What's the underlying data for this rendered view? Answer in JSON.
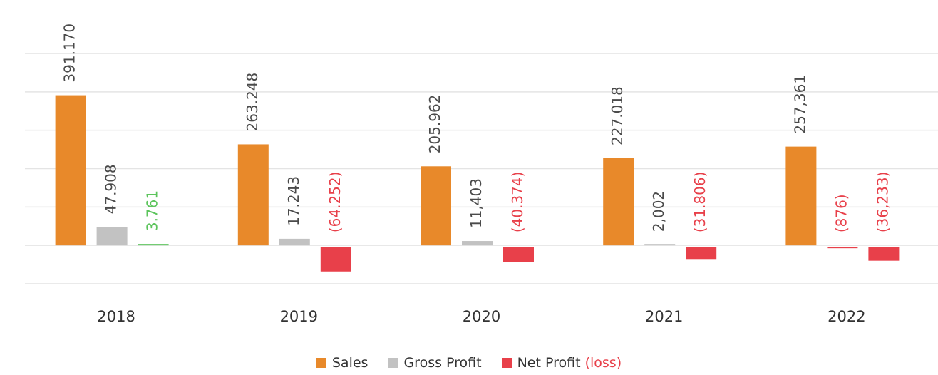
{
  "chart_data": {
    "type": "bar",
    "categories": [
      "2018",
      "2019",
      "2020",
      "2021",
      "2022"
    ],
    "series": [
      {
        "name": "Sales",
        "color": "#e8892a",
        "label_color": "#4a4a4a",
        "negative_label_color": "#e8404a",
        "values": [
          391170,
          263248,
          205962,
          227018,
          257361
        ],
        "value_labels": [
          "391.170",
          "263.248",
          "205.962",
          "227.018",
          "257,361"
        ]
      },
      {
        "name": "Gross Profit",
        "color": "#c2c2c2",
        "negative_color": "#e8404a",
        "label_color": "#4a4a4a",
        "negative_label_color": "#e8404a",
        "values": [
          47908,
          17243,
          11403,
          2002,
          -876
        ],
        "value_labels": [
          "47.908",
          "17.243",
          "11,403",
          "2,002",
          "(876)"
        ]
      },
      {
        "name": "Net Profit (loss)",
        "color": "#e8404a",
        "positive_color": "#5cc45c",
        "label_color": "#5cc45c",
        "negative_label_color": "#e8404a",
        "values": [
          3761,
          -64252,
          -40374,
          -31806,
          -36233
        ],
        "value_labels": [
          "3.761",
          "(64.252)",
          "(40.374)",
          "(31.806)",
          "(36,233)"
        ]
      }
    ],
    "ylim": [
      -100000,
      500000
    ],
    "yticks": [
      -100000,
      0,
      100000,
      200000,
      300000,
      400000,
      500000
    ],
    "grid": true,
    "tick_labels": false,
    "legend": "bottom"
  }
}
